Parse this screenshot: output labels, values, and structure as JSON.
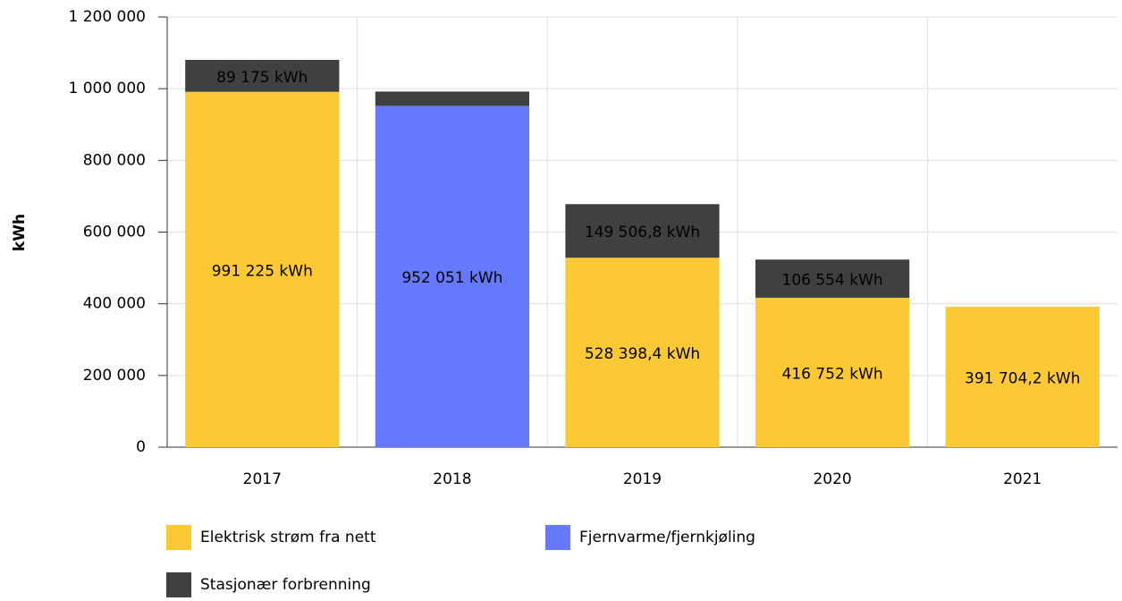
{
  "chart_data": {
    "type": "stacked_bar",
    "y_label": "kWh",
    "categories": [
      "2017",
      "2018",
      "2019",
      "2020",
      "2021"
    ],
    "series": [
      {
        "name": "Elektrisk strøm fra nett",
        "color": "#fcc934",
        "values": [
          991225,
          null,
          528398.4,
          416752,
          391704.2
        ],
        "value_labels": [
          "991 225 kWh",
          null,
          "528 398,4 kWh",
          "416 752 kWh",
          "391 704,2 kWh"
        ]
      },
      {
        "name": "Fjernvarme/fjernkjøling",
        "color": "#6479fb",
        "values": [
          null,
          952051,
          null,
          null,
          null
        ],
        "value_labels": [
          null,
          "952 051 kWh",
          null,
          null,
          null
        ]
      },
      {
        "name": "Stasjonær forbrenning",
        "color": "#404040",
        "values": [
          89175,
          40000,
          149506.8,
          106554,
          null
        ],
        "value_labels": [
          "89 175 kWh",
          null,
          "149 506,8 kWh",
          "106 554 kWh",
          null
        ]
      }
    ],
    "ylim": [
      0,
      1200000
    ],
    "yticks": [
      0,
      {
        "value": 200000,
        "label": "200 000"
      },
      {
        "value": 400000,
        "label": "400 000"
      },
      {
        "value": 600000,
        "label": "600 000"
      },
      {
        "value": 800000,
        "label": "800 000"
      },
      {
        "value": 1000000,
        "label": "1 000 000"
      },
      {
        "value": 1200000,
        "label": "1 200 000"
      }
    ],
    "grid": true
  }
}
